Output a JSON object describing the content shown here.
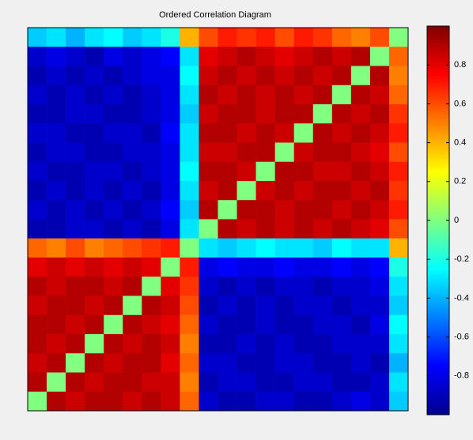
{
  "chart_data": {
    "type": "heatmap",
    "title": "Ordered Correlation Diagram",
    "colormap": "jet",
    "zlim": [
      -1,
      1
    ],
    "zticks": [
      -0.8,
      -0.6,
      -0.4,
      -0.2,
      0,
      0.2,
      0.4,
      0.6,
      0.8
    ],
    "z": [
      [
        -0.35,
        -0.3,
        -0.4,
        -0.3,
        -0.25,
        -0.35,
        -0.3,
        -0.2,
        0.4,
        0.6,
        0.7,
        0.65,
        0.7,
        0.6,
        0.7,
        0.65,
        0.55,
        0.5,
        0.6,
        0
      ],
      [
        -0.85,
        -0.8,
        -0.85,
        -0.9,
        -0.8,
        -0.85,
        -0.8,
        -0.75,
        -0.3,
        0.8,
        0.85,
        0.9,
        0.85,
        0.8,
        0.85,
        0.9,
        0.85,
        0.9,
        0,
        0.55
      ],
      [
        -0.9,
        -0.85,
        -0.9,
        -0.85,
        -0.9,
        -0.85,
        -0.8,
        -0.8,
        -0.25,
        0.85,
        0.9,
        0.85,
        0.9,
        0.85,
        0.9,
        0.85,
        0.9,
        0,
        0.9,
        0.5
      ],
      [
        -0.85,
        -0.9,
        -0.85,
        -0.9,
        -0.85,
        -0.9,
        -0.85,
        -0.8,
        -0.3,
        0.9,
        0.85,
        0.9,
        0.85,
        0.9,
        0.85,
        0.9,
        0,
        0.9,
        0.85,
        0.55
      ],
      [
        -0.9,
        -0.9,
        -0.85,
        -0.85,
        -0.9,
        -0.9,
        -0.85,
        -0.8,
        -0.35,
        0.85,
        0.9,
        0.9,
        0.85,
        0.9,
        0.9,
        0,
        0.9,
        0.85,
        0.9,
        0.65
      ],
      [
        -0.85,
        -0.85,
        -0.9,
        -0.9,
        -0.85,
        -0.85,
        -0.9,
        -0.75,
        -0.3,
        0.9,
        0.9,
        0.85,
        0.9,
        0.85,
        0,
        0.9,
        0.85,
        0.9,
        0.85,
        0.7
      ],
      [
        -0.9,
        -0.85,
        -0.85,
        -0.9,
        -0.9,
        -0.85,
        -0.85,
        -0.8,
        -0.3,
        0.85,
        0.85,
        0.9,
        0.9,
        0,
        0.85,
        0.9,
        0.9,
        0.85,
        0.8,
        0.6
      ],
      [
        -0.85,
        -0.9,
        -0.9,
        -0.85,
        -0.85,
        -0.9,
        -0.85,
        -0.8,
        -0.25,
        0.9,
        0.9,
        0.85,
        0,
        0.9,
        0.9,
        0.85,
        0.85,
        0.9,
        0.85,
        0.7
      ],
      [
        -0.9,
        -0.85,
        -0.9,
        -0.85,
        -0.9,
        -0.85,
        -0.9,
        -0.8,
        -0.3,
        0.85,
        0.9,
        0,
        0.85,
        0.9,
        0.85,
        0.9,
        0.9,
        0.85,
        0.9,
        0.65
      ],
      [
        -0.85,
        -0.9,
        -0.85,
        -0.9,
        -0.85,
        -0.9,
        -0.85,
        -0.75,
        -0.35,
        0.9,
        0,
        0.9,
        0.9,
        0.85,
        0.9,
        0.9,
        0.85,
        0.9,
        0.85,
        0.7
      ],
      [
        -0.9,
        -0.9,
        -0.85,
        -0.85,
        -0.9,
        -0.85,
        -0.9,
        -0.8,
        -0.3,
        0,
        0.9,
        0.85,
        0.9,
        0.85,
        0.9,
        0.85,
        0.9,
        0.85,
        0.8,
        0.6
      ],
      [
        0.55,
        0.5,
        0.6,
        0.5,
        0.55,
        0.6,
        0.65,
        0.7,
        0,
        -0.3,
        -0.35,
        -0.3,
        -0.25,
        -0.3,
        -0.3,
        -0.35,
        -0.25,
        -0.3,
        -0.3,
        0.4
      ],
      [
        0.8,
        0.85,
        0.8,
        0.85,
        0.8,
        0.85,
        0.8,
        0,
        0.7,
        -0.8,
        -0.75,
        -0.8,
        -0.8,
        -0.75,
        -0.8,
        -0.8,
        -0.75,
        -0.8,
        -0.75,
        -0.2
      ],
      [
        0.9,
        0.85,
        0.9,
        0.9,
        0.85,
        0.9,
        0,
        0.8,
        0.65,
        -0.85,
        -0.9,
        -0.85,
        -0.9,
        -0.85,
        -0.85,
        -0.9,
        -0.85,
        -0.85,
        -0.8,
        -0.3
      ],
      [
        0.85,
        0.9,
        0.9,
        0.85,
        0.9,
        0,
        0.9,
        0.85,
        0.6,
        -0.9,
        -0.85,
        -0.9,
        -0.85,
        -0.9,
        -0.85,
        -0.85,
        -0.9,
        -0.85,
        -0.85,
        -0.35
      ],
      [
        0.9,
        0.9,
        0.85,
        0.9,
        0,
        0.9,
        0.85,
        0.8,
        0.55,
        -0.85,
        -0.9,
        -0.9,
        -0.85,
        -0.9,
        -0.9,
        -0.85,
        -0.85,
        -0.9,
        -0.8,
        -0.25
      ],
      [
        0.9,
        0.85,
        0.9,
        0,
        0.9,
        0.85,
        0.9,
        0.85,
        0.5,
        -0.9,
        -0.9,
        -0.85,
        -0.9,
        -0.85,
        -0.9,
        -0.9,
        -0.85,
        -0.85,
        -0.85,
        -0.3
      ],
      [
        0.85,
        0.9,
        0,
        0.9,
        0.85,
        0.9,
        0.9,
        0.8,
        0.55,
        -0.85,
        -0.85,
        -0.9,
        -0.9,
        -0.85,
        -0.85,
        -0.9,
        -0.9,
        -0.85,
        -0.9,
        -0.4
      ],
      [
        0.9,
        0,
        0.9,
        0.85,
        0.9,
        0.9,
        0.85,
        0.85,
        0.5,
        -0.9,
        -0.85,
        -0.85,
        -0.9,
        -0.9,
        -0.85,
        -0.85,
        -0.9,
        -0.9,
        -0.85,
        -0.3
      ],
      [
        0,
        0.9,
        0.85,
        0.9,
        0.9,
        0.85,
        0.9,
        0.85,
        0.55,
        -0.85,
        -0.9,
        -0.9,
        -0.85,
        -0.85,
        -0.9,
        -0.9,
        -0.85,
        -0.8,
        -0.85,
        -0.35
      ]
    ]
  }
}
